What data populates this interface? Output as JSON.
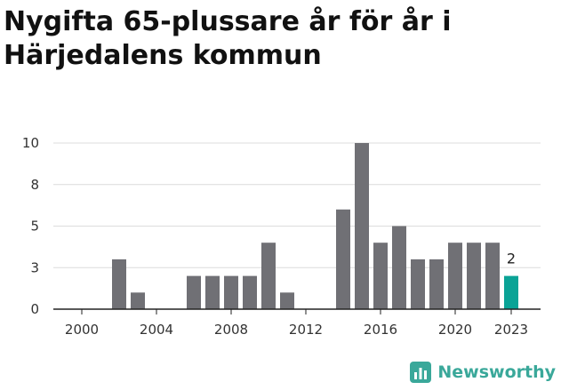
{
  "title": "Nygifta 65-plussare år för år i Härjedalens kommun",
  "brand": {
    "name": "Newsworthy",
    "icon": "newsworthy-logo-icon",
    "color": "#3aa89a"
  },
  "colors": {
    "bar": "#707075",
    "highlight": "#0aa396",
    "grid": "#dcdcdc",
    "axis": "#222222"
  },
  "chart_data": {
    "type": "bar",
    "title": "Nygifta 65-plussare år för år i Härjedalens kommun",
    "xlabel": "",
    "ylabel": "",
    "x": [
      2000,
      2001,
      2002,
      2003,
      2004,
      2005,
      2006,
      2007,
      2008,
      2009,
      2010,
      2011,
      2012,
      2013,
      2014,
      2015,
      2016,
      2017,
      2018,
      2019,
      2020,
      2021,
      2022,
      2023
    ],
    "values": [
      0,
      0,
      3,
      1,
      0,
      0,
      2,
      2,
      2,
      2,
      4,
      1,
      0,
      0,
      6,
      10,
      4,
      5,
      3,
      3,
      4,
      4,
      4,
      2
    ],
    "ylim": [
      0,
      10
    ],
    "y_ticks": [
      0,
      2.5,
      5,
      7.5,
      10
    ],
    "y_tick_labels": [
      "0",
      "3",
      "5",
      "8",
      "10"
    ],
    "x_ticks": [
      2000,
      2004,
      2008,
      2012,
      2016,
      2020,
      2023
    ],
    "x_tick_labels": [
      "2000",
      "2004",
      "2008",
      "2012",
      "2016",
      "2020",
      "2023"
    ],
    "highlight": {
      "year": 2023,
      "label": "2"
    },
    "grid": true,
    "legend": "none"
  }
}
